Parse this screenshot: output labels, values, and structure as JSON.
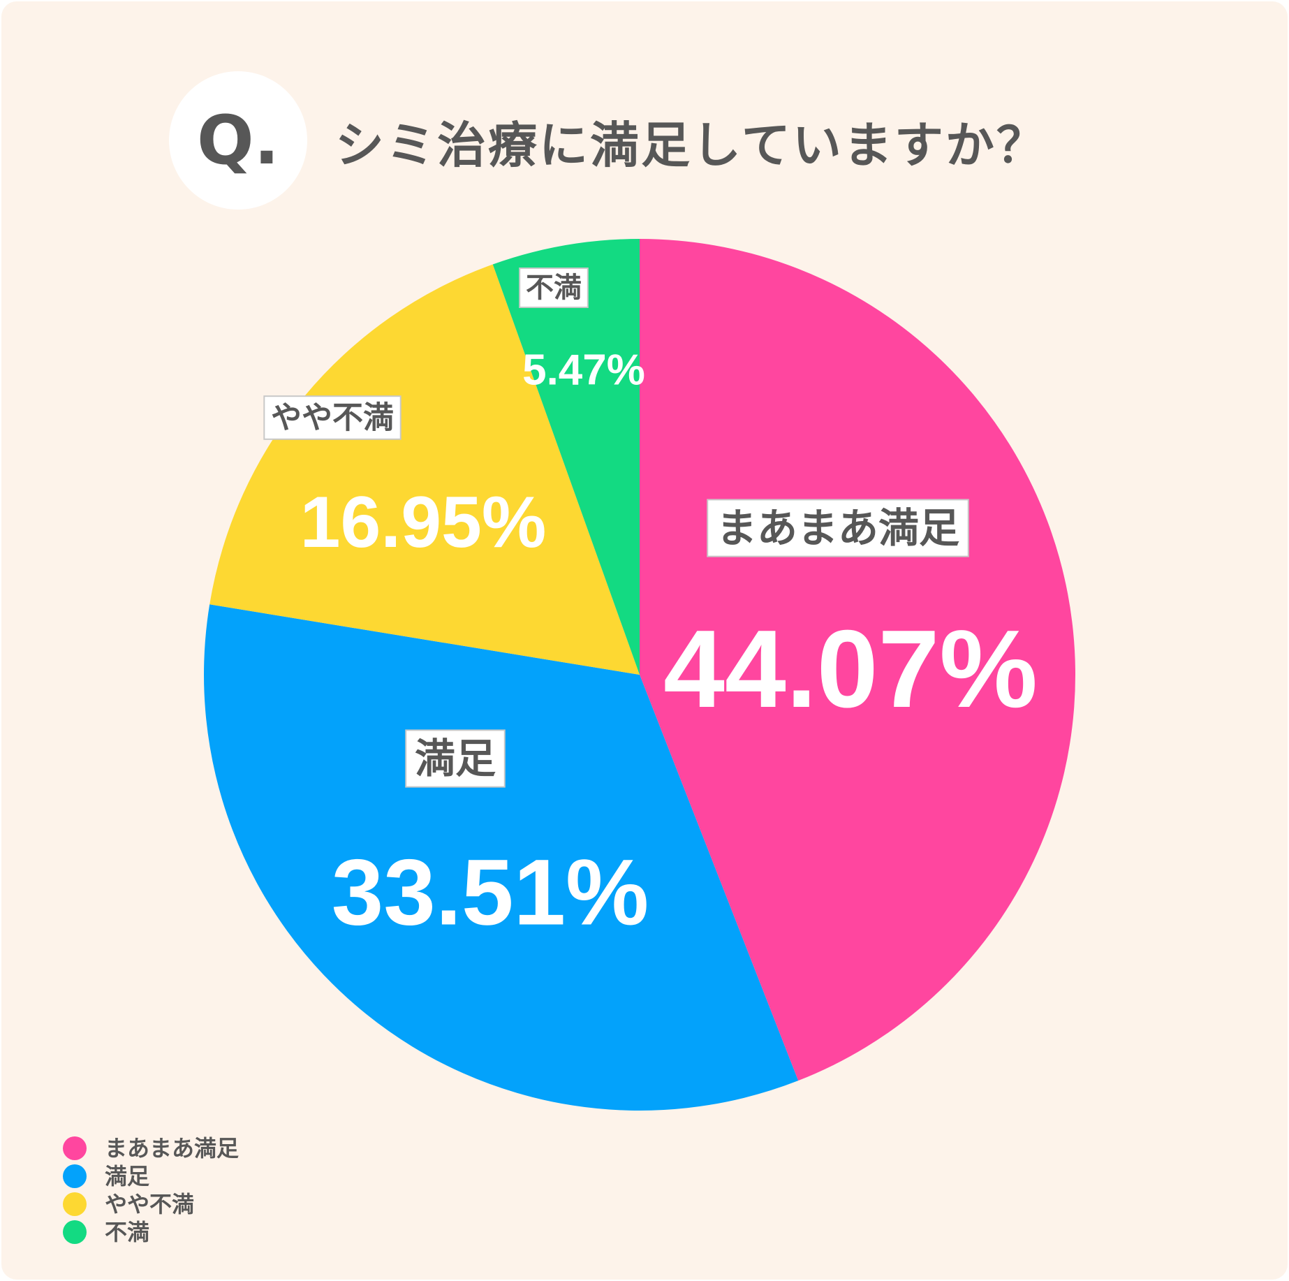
{
  "header": {
    "badge": "Q.",
    "question": "シミ治療に満足していますか？"
  },
  "chart_data": {
    "type": "pie",
    "title": "シミ治療に満足していますか？",
    "slices": [
      {
        "label": "まあまあ満足",
        "value": 44.07,
        "value_text": "44.07%",
        "color": "#ff469f"
      },
      {
        "label": "満足",
        "value": 33.51,
        "value_text": "33.51%",
        "color": "#03a2fb"
      },
      {
        "label": "やや不満",
        "value": 16.95,
        "value_text": "16.95%",
        "color": "#fdd832"
      },
      {
        "label": "不満",
        "value": 5.47,
        "value_text": "5.47%",
        "color": "#13da82"
      }
    ],
    "start": "12 o'clock",
    "direction": "clockwise",
    "legend_position": "bottom-left"
  }
}
